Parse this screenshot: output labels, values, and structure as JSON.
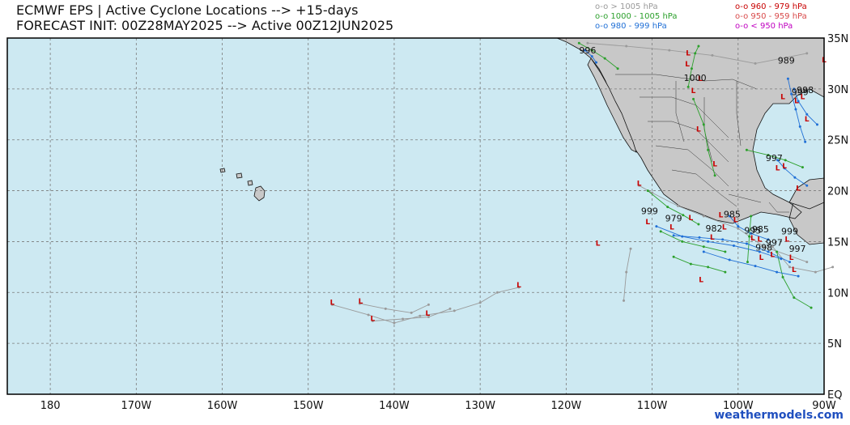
{
  "header": {
    "title_line1": "ECMWF EPS | Active Cyclone Locations --> +15-days",
    "title_line2": "FORECAST INIT: 00Z28MAY2025 --> Active 00Z12JUN2025"
  },
  "legend": [
    {
      "label": "o-o > 1005 hPa",
      "color": "#9a9a9a"
    },
    {
      "label": "o-o 1000 - 1005 hPa",
      "color": "#2ca02c"
    },
    {
      "label": "o-o 980 - 999 hPa",
      "color": "#1f6fd6"
    },
    {
      "label": "o-o 960 - 979 hPa",
      "color": "#c80000"
    },
    {
      "label": "o-o 950 - 959 hPa",
      "color": "#d84a4a"
    },
    {
      "label": "o-o < 950 hPa",
      "color": "#c000c0"
    }
  ],
  "map": {
    "region": "East Pacific / Mexico / Gulf of Mexico",
    "lon_range": [
      -185,
      -90
    ],
    "lat_range": [
      0,
      35
    ],
    "ocean_color": "#cde9f2",
    "land_color": "#c8c8c8",
    "lon_labels": [
      "180",
      "170W",
      "160W",
      "150W",
      "140W",
      "130W",
      "120W",
      "110W",
      "100W",
      "90W"
    ],
    "lat_labels": [
      "EQ",
      "5N",
      "10N",
      "15N",
      "20N",
      "25N",
      "30N",
      "35N"
    ],
    "low_marker": "L",
    "pressure_labels": [
      {
        "text": "996",
        "lon": -117.5,
        "lat": 33.5
      },
      {
        "text": "1000",
        "lon": -105.0,
        "lat": 30.8
      },
      {
        "text": "989",
        "lon": -94.4,
        "lat": 32.5
      },
      {
        "text": "998",
        "lon": -92.2,
        "lat": 29.6
      },
      {
        "text": "999",
        "lon": -92.8,
        "lat": 29.4
      },
      {
        "text": "997",
        "lon": -95.8,
        "lat": 22.9
      },
      {
        "text": "999",
        "lon": -110.3,
        "lat": 17.7
      },
      {
        "text": "979",
        "lon": -107.5,
        "lat": 17.0
      },
      {
        "text": "982",
        "lon": -102.8,
        "lat": 16.0
      },
      {
        "text": "985",
        "lon": -100.7,
        "lat": 17.4
      },
      {
        "text": "995",
        "lon": -98.3,
        "lat": 15.8
      },
      {
        "text": "985",
        "lon": -97.4,
        "lat": 15.9
      },
      {
        "text": "999",
        "lon": -94.0,
        "lat": 15.7
      },
      {
        "text": "997",
        "lon": -95.8,
        "lat": 14.6
      },
      {
        "text": "998",
        "lon": -97.0,
        "lat": 14.1
      },
      {
        "text": "997",
        "lon": -93.1,
        "lat": 14.0
      }
    ]
  },
  "footer": {
    "brand": "weathermodels.com"
  }
}
